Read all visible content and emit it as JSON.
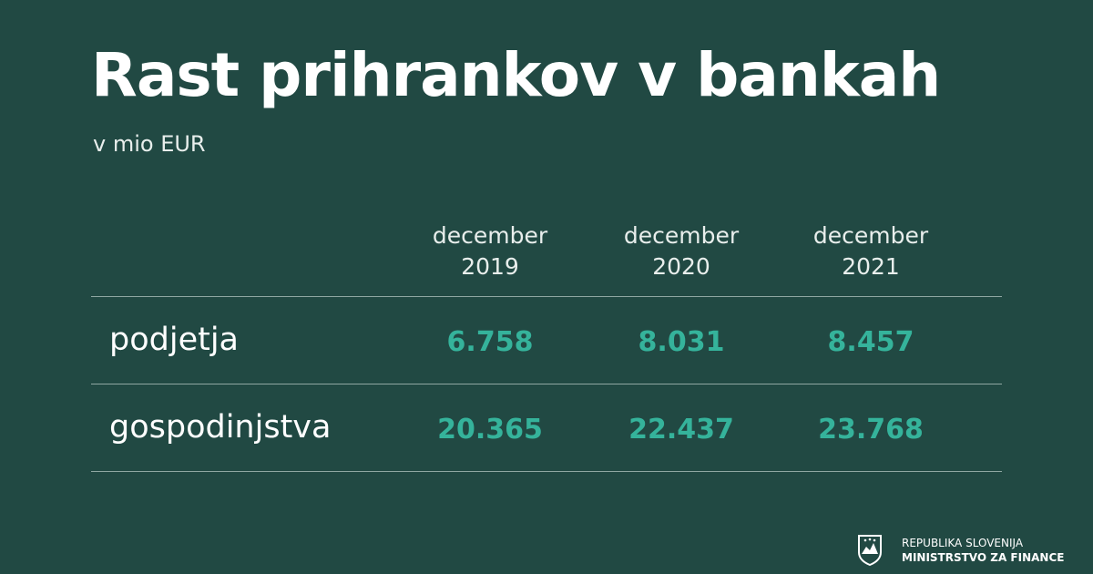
{
  "header": {
    "title": "Rast prihrankov v bankah",
    "subtitle": "v mio EUR"
  },
  "table": {
    "columns": [
      [
        "december",
        "2019"
      ],
      [
        "december",
        "2020"
      ],
      [
        "december",
        "2021"
      ]
    ],
    "rows": [
      {
        "label": "podjetja",
        "values": [
          "6.758",
          "8.031",
          "8.457"
        ]
      },
      {
        "label": "gospodinjstva",
        "values": [
          "20.365",
          "22.437",
          "23.768"
        ]
      }
    ]
  },
  "footer": {
    "line1": "REPUBLIKA SLOVENIJA",
    "line2": "MINISTRSTVO ZA FINANCE"
  }
}
